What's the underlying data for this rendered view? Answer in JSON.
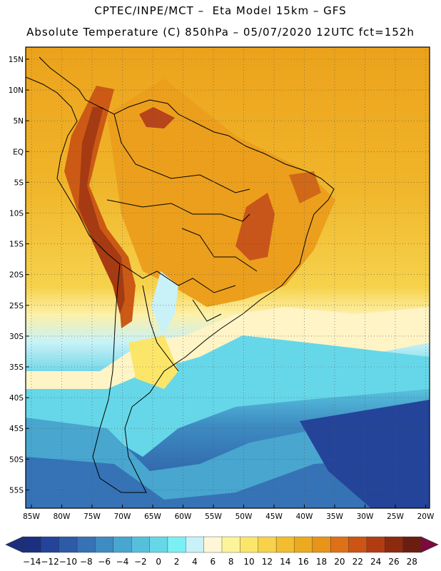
{
  "header": {
    "line1": "CPTEC/INPE/MCT –  Eta Model 15km – GFS",
    "line2": "Absolute Temperature (C) 850hPa – 05/07/2020 12UTC fct=152h"
  },
  "axes": {
    "lat_labels": [
      "15N",
      "10N",
      "5N",
      "EQ",
      "5S",
      "10S",
      "15S",
      "20S",
      "25S",
      "30S",
      "35S",
      "40S",
      "45S",
      "50S",
      "55S"
    ],
    "lon_labels": [
      "85W",
      "80W",
      "75W",
      "70W",
      "65W",
      "60W",
      "55W",
      "50W",
      "45W",
      "40W",
      "35W",
      "30W",
      "25W",
      "20W"
    ]
  },
  "colorbar": {
    "labels": [
      "-14",
      "-12",
      "-10",
      "-8",
      "-6",
      "-4",
      "-2",
      "0",
      "2",
      "4",
      "6",
      "8",
      "10",
      "12",
      "14",
      "16",
      "18",
      "20",
      "22",
      "24",
      "26",
      "28"
    ],
    "colors": [
      "#1b2f7e",
      "#24449a",
      "#2d5ba8",
      "#3573b6",
      "#3d8cc2",
      "#48a6cf",
      "#56c0dc",
      "#66d7e8",
      "#7af0f5",
      "#c8f2f8",
      "#fff6d8",
      "#fdf39a",
      "#fbe66a",
      "#f7d24a",
      "#f2bd2e",
      "#ecaa1e",
      "#e8931a",
      "#de7016",
      "#cc5414",
      "#b23c12",
      "#8c2a10",
      "#6b1e10"
    ],
    "low_arrow_color": "#1b2f7e",
    "high_arrow_color": "#7c0a3e"
  }
}
